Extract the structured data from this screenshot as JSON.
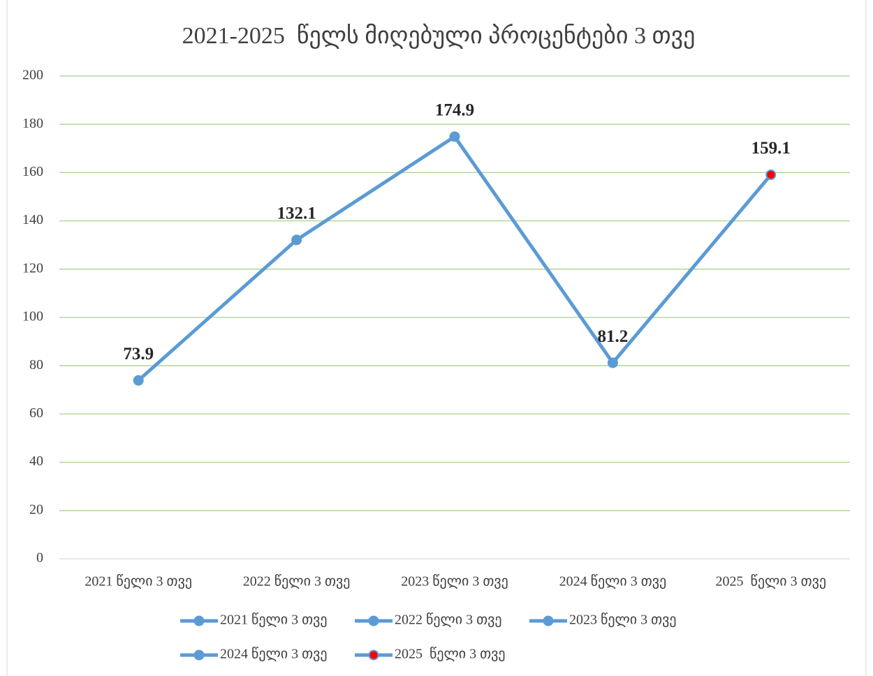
{
  "chart_data": {
    "type": "line",
    "title": "2021-2025  წელს მიღებული პროცენტები 3 თვე",
    "categories": [
      "2021 წელი 3 თვე",
      "2022 წელი 3 თვე",
      "2023 წელი 3 თვე",
      "2024 წელი 3 თვე",
      "2025  წელი 3 თვე"
    ],
    "values": [
      73.9,
      132.1,
      174.9,
      81.2,
      159.1
    ],
    "color": "#5b9bd5",
    "marker_colors": [
      "#5b9bd5",
      "#5b9bd5",
      "#5b9bd5",
      "#5b9bd5",
      "#ff0000"
    ],
    "ylim": [
      0,
      200
    ],
    "yticks": [
      0,
      20,
      40,
      60,
      80,
      100,
      120,
      140,
      160,
      180,
      200
    ],
    "grid": true,
    "grid_color": "#a9d18e",
    "legend": "bottom"
  }
}
